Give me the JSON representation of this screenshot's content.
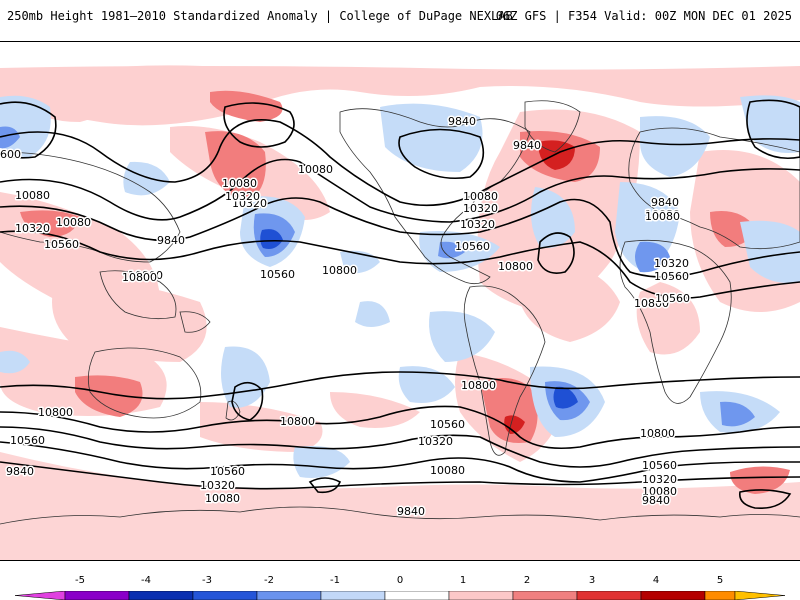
{
  "header": {
    "title_left": "250mb Height 1981–2010 Standardized Anomaly | College of DuPage NEXLAB",
    "title_right": "06Z GFS | F354 Valid: 00Z MON DEC 01 2025"
  },
  "legend": {
    "ticks": [
      "-5",
      "-4",
      "-3",
      "-2",
      "-1",
      "0",
      "1",
      "2",
      "3",
      "4",
      "5"
    ],
    "colors": [
      "#e040e0",
      "#8a00c8",
      "#0a2fb0",
      "#2455d8",
      "#6a93ee",
      "#c2d8f8",
      "#ffffff",
      "#fcc8c8",
      "#f08080",
      "#e03232",
      "#b40000",
      "#ff8c00",
      "#ffc000"
    ]
  },
  "map": {
    "background": "#ffffff",
    "anomaly_colors": {
      "neg1": "#c5dcf8",
      "neg2": "#6f97ee",
      "neg3": "#1f50d4",
      "pos1": "#fdd0d0",
      "pos2": "#f27d7d",
      "pos3": "#d42020"
    },
    "contour_labels": [
      "9840",
      "9840",
      "10080",
      "10320",
      "10080",
      "10320",
      "10080",
      "10320",
      "10560",
      "9840",
      "10560",
      "10800",
      "10800",
      "10800",
      "9840",
      "10080",
      "10320",
      "10560",
      "10800",
      "10560",
      "10320",
      "10080",
      "10800",
      "10080",
      "10320",
      "10560",
      "600",
      "10800",
      "10800",
      "10560",
      "9840",
      "10560",
      "10320",
      "10080",
      "9840",
      "10560",
      "10320",
      "10080",
      "10800",
      "10560",
      "10320",
      "10080",
      "9840",
      "10800",
      "10080"
    ]
  }
}
